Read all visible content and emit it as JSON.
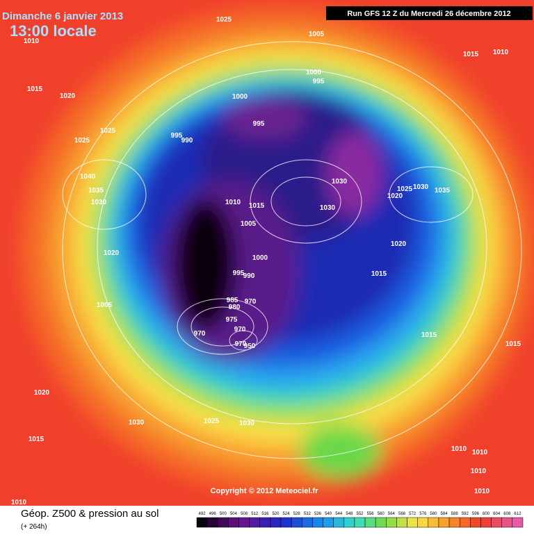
{
  "header": {
    "date": "Dimanche 6 janvier 2013",
    "time": "13:00 locale",
    "run": "Run GFS 12 Z du Mercredi 26 décembre 2012"
  },
  "isobar_labels": [
    1025,
    1005,
    1010,
    1015,
    1010,
    1000,
    995,
    1015,
    1020,
    1000,
    995,
    1025,
    1025,
    995,
    990,
    1040,
    1030,
    1035,
    1025,
    1030,
    1035,
    1020,
    1030,
    1010,
    1015,
    1030,
    1005,
    1020,
    1020,
    1000,
    995,
    990,
    1015,
    985,
    970,
    980,
    1005,
    975,
    970,
    970,
    970,
    950,
    1015,
    1015,
    1020,
    1030,
    1025,
    1030,
    1015,
    1010,
    1010,
    1010,
    1010,
    1010
  ],
  "copyright": "Copyright © 2012 Meteociel.fr",
  "footer": {
    "title": "Géop. Z500 & pression au sol",
    "lead": "(+ 264h)"
  },
  "scale": [
    492,
    496,
    500,
    504,
    508,
    512,
    516,
    520,
    524,
    528,
    532,
    536,
    540,
    544,
    548,
    552,
    556,
    560,
    564,
    568,
    572,
    576,
    580,
    584,
    588,
    592,
    596,
    600,
    604,
    608,
    612
  ]
}
